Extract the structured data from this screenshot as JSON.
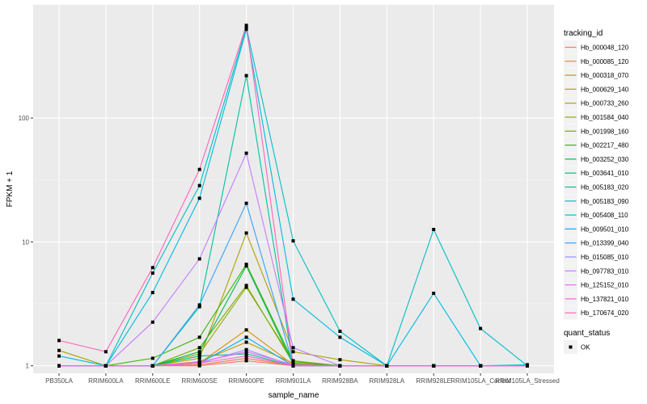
{
  "chart_data": {
    "type": "line",
    "title": "",
    "xlabel": "sample_name",
    "ylabel": "FPKM + 1",
    "y_scale": "log10",
    "ylim": [
      0.87,
      820
    ],
    "y_ticks": [
      1,
      10,
      100
    ],
    "y_tick_labels": [
      "1",
      "10",
      "100"
    ],
    "grid": true,
    "legend_position": "right",
    "categories": [
      "PB350LA",
      "RRIM600LA",
      "RRIM600LE",
      "RRIM600SE",
      "RRIM600PE",
      "RRIM901LA",
      "RRIM928BA",
      "RRIM928LA",
      "RRIM928LE",
      "RRIM105LA_Control",
      "RRIM105LA_Stressed"
    ],
    "color_legend": {
      "title": "tracking_id"
    },
    "shape_legend": {
      "title": "quant_status",
      "items": [
        "OK"
      ]
    },
    "series": [
      {
        "name": "Hb_000048_120",
        "color": "#F8766D",
        "values": [
          1,
          1,
          1,
          1,
          1.1,
          1,
          1,
          1,
          1,
          1,
          1
        ]
      },
      {
        "name": "Hb_000085_120",
        "color": "#EC8239",
        "values": [
          1,
          1,
          1,
          1.02,
          1.15,
          1,
          1,
          1,
          1,
          1,
          1
        ]
      },
      {
        "name": "Hb_000318_070",
        "color": "#DB8E00",
        "values": [
          1,
          1,
          1,
          1.05,
          1.95,
          1.02,
          1,
          1,
          1,
          1,
          1
        ]
      },
      {
        "name": "Hb_000629_140",
        "color": "#C79800",
        "values": [
          1,
          1,
          1,
          1.08,
          1.55,
          1.05,
          1,
          1,
          1,
          1,
          1
        ]
      },
      {
        "name": "Hb_000733_260",
        "color": "#AFA100",
        "values": [
          1.33,
          1,
          1,
          1.15,
          11.8,
          1.3,
          1.12,
          1,
          1,
          1,
          1
        ]
      },
      {
        "name": "Hb_001584_040",
        "color": "#93AA00",
        "values": [
          1,
          1,
          1,
          1.25,
          4.3,
          1.1,
          1,
          1,
          1,
          1,
          1
        ]
      },
      {
        "name": "Hb_001998_160",
        "color": "#72B000",
        "values": [
          1,
          1,
          1,
          1.4,
          4.45,
          1.05,
          1,
          1,
          1,
          1,
          1
        ]
      },
      {
        "name": "Hb_002217_480",
        "color": "#39B600",
        "values": [
          1,
          1,
          1.15,
          1.7,
          6.6,
          1.08,
          1,
          1,
          1,
          1,
          1
        ]
      },
      {
        "name": "Hb_003252_030",
        "color": "#00BB4E",
        "values": [
          1,
          1,
          1,
          1.3,
          6.4,
          1.03,
          1,
          1,
          1,
          1,
          1
        ]
      },
      {
        "name": "Hb_003641_010",
        "color": "#00BF7D",
        "values": [
          1,
          1,
          1,
          1.2,
          1.25,
          1,
          1,
          1,
          1,
          1,
          1
        ]
      },
      {
        "name": "Hb_005183_020",
        "color": "#00C1A3",
        "values": [
          1,
          1,
          1,
          3.0,
          220,
          1.0,
          1,
          1,
          1,
          1,
          1
        ]
      },
      {
        "name": "Hb_005183_090",
        "color": "#00BFC4",
        "values": [
          1,
          1,
          5.6,
          28.5,
          540,
          10.2,
          1.9,
          1,
          12.6,
          2.0,
          1
        ]
      },
      {
        "name": "Hb_005408_110",
        "color": "#00BAE0",
        "values": [
          1.2,
          1,
          3.9,
          22.5,
          520,
          3.45,
          1.7,
          1,
          3.85,
          1,
          1.02
        ]
      },
      {
        "name": "Hb_009501_010",
        "color": "#00B0F6",
        "values": [
          1,
          1,
          1,
          1.05,
          1.7,
          1,
          1,
          1,
          1,
          1,
          1
        ]
      },
      {
        "name": "Hb_013399_040",
        "color": "#35A2FF",
        "values": [
          1,
          1,
          1,
          3.1,
          20.5,
          1.02,
          1,
          1,
          1,
          1,
          1
        ]
      },
      {
        "name": "Hb_015085_010",
        "color": "#9590FF",
        "values": [
          1,
          1,
          1,
          1.05,
          1.35,
          1,
          1,
          1,
          1,
          1,
          1
        ]
      },
      {
        "name": "Hb_097783_010",
        "color": "#C77CFF",
        "values": [
          1,
          1,
          2.25,
          7.3,
          52,
          1.4,
          1,
          1,
          1,
          1,
          1
        ]
      },
      {
        "name": "Hb_125152_010",
        "color": "#E76BF3",
        "values": [
          1,
          1,
          1,
          1.07,
          1.3,
          1.02,
          1,
          1,
          1,
          1,
          1
        ]
      },
      {
        "name": "Hb_137821_010",
        "color": "#FA62DB",
        "values": [
          1,
          1,
          1,
          1.05,
          1.2,
          1,
          1,
          1,
          1,
          1,
          1
        ]
      },
      {
        "name": "Hb_170674_020",
        "color": "#FF62BC",
        "values": [
          1.6,
          1.3,
          6.2,
          38.5,
          560,
          1.02,
          1,
          1,
          1,
          1,
          1
        ]
      }
    ]
  }
}
